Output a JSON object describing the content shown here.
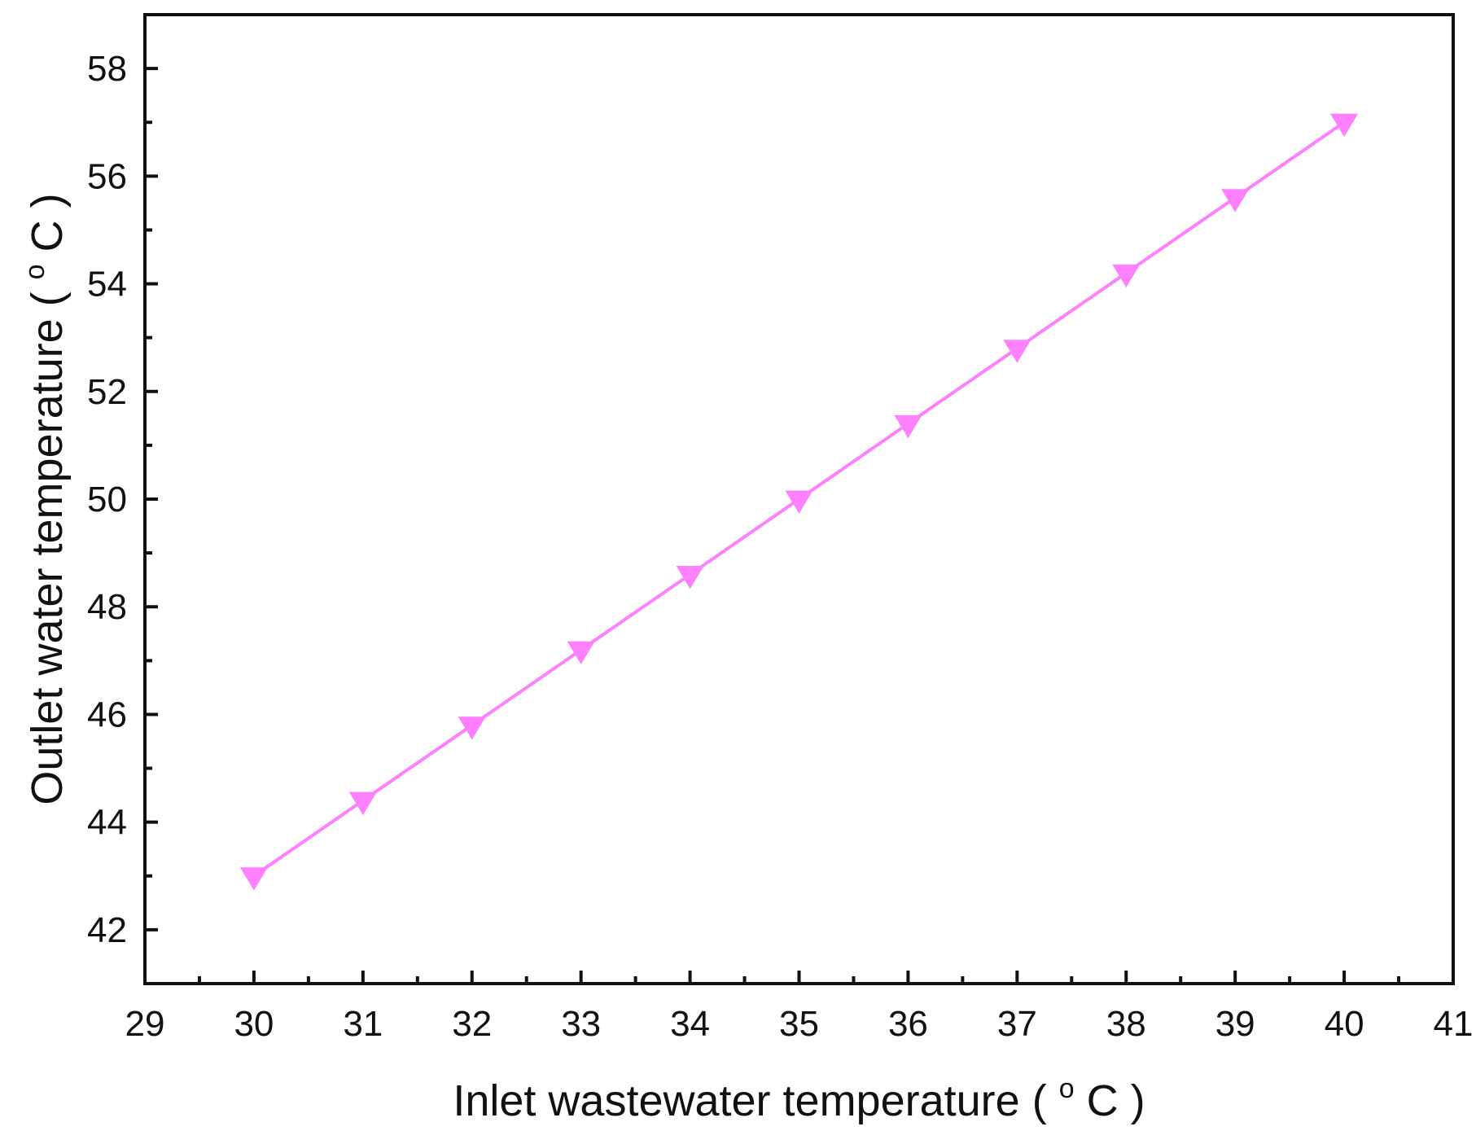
{
  "chart_data": {
    "type": "line",
    "title": "",
    "xlabel": "Inlet wastewater temperature",
    "ylabel": "Outlet water temperature",
    "unit_degree": "o",
    "unit_letter": "C",
    "xlim": [
      29,
      41
    ],
    "ylim": [
      41,
      59
    ],
    "x_ticks": [
      29,
      30,
      31,
      32,
      33,
      34,
      35,
      36,
      37,
      38,
      39,
      40,
      41
    ],
    "x_minor_ticks": [
      29.5,
      30.5,
      31.5,
      32.5,
      33.5,
      34.5,
      35.5,
      36.5,
      37.5,
      38.5,
      39.5,
      40.5
    ],
    "y_ticks": [
      42,
      44,
      46,
      48,
      50,
      52,
      54,
      56,
      58
    ],
    "y_minor_ticks": [
      43,
      45,
      47,
      49,
      51,
      53,
      55,
      57
    ],
    "grid": false,
    "legend": "none",
    "series": [
      {
        "color": "#ff80ff",
        "marker": "triangle-down",
        "x": [
          30,
          31,
          32,
          33,
          34,
          35,
          36,
          37,
          38,
          39,
          40
        ],
        "y": [
          43.0,
          44.4,
          45.8,
          47.2,
          48.6,
          50.0,
          51.4,
          52.8,
          54.2,
          55.6,
          57.0
        ]
      }
    ]
  }
}
